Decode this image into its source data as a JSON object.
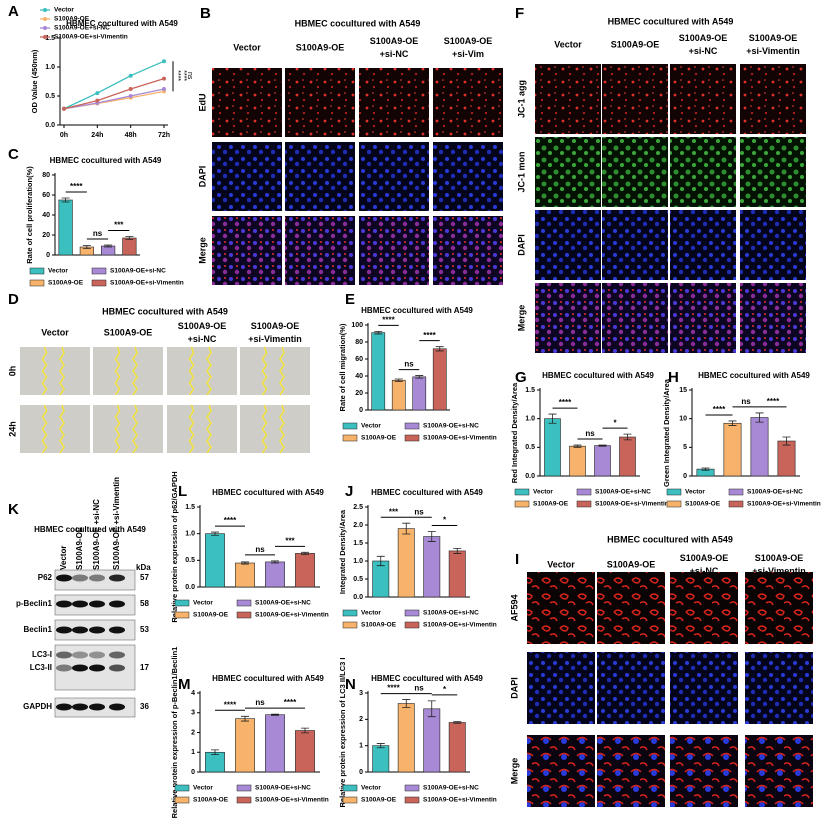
{
  "chart_data": [
    {
      "type": "line",
      "title": "HBMEC cocultured with A549",
      "ylabel": "OD Value (450nm)",
      "categories": [
        "0h",
        "24h",
        "48h",
        "72h"
      ],
      "series": [
        {
          "name": "Vector",
          "color": "#3bbfbf",
          "values": [
            0.28,
            0.55,
            0.85,
            1.1
          ]
        },
        {
          "name": "S100A9-OE",
          "color": "#f7b26b",
          "values": [
            0.28,
            0.37,
            0.47,
            0.58
          ]
        },
        {
          "name": "S100A9-OE+si-NC",
          "color": "#a889d6",
          "values": [
            0.28,
            0.38,
            0.5,
            0.62
          ]
        },
        {
          "name": "S100A9-OE+si-Vimentin",
          "color": "#c8645a",
          "values": [
            0.28,
            0.42,
            0.62,
            0.8
          ]
        }
      ],
      "ylim": [
        0,
        1.5
      ],
      "yticks": [
        {
          "value": 0,
          "label": "0.0"
        },
        0.5,
        {
          "value": 1,
          "label": "1.0"
        },
        1.5
      ],
      "annotations": [
        "****",
        "****",
        "ns"
      ]
    },
    {
      "type": "bar",
      "title": "HBMEC cocultured with A549",
      "ylabel": "Rate of cell proliferation(%)",
      "series": [
        {
          "name": "Vector",
          "color": "#3bbfbf",
          "values": [
            55
          ],
          "errors": [
            2
          ]
        },
        {
          "name": "S100A9-OE",
          "color": "#f7b26b",
          "values": [
            8
          ],
          "errors": [
            1.5
          ]
        },
        {
          "name": "S100A9-OE+si-NC",
          "color": "#a889d6",
          "values": [
            9
          ],
          "errors": [
            1
          ]
        },
        {
          "name": "S100A9-OE+si-Vimentin",
          "color": "#c8645a",
          "values": [
            17
          ],
          "errors": [
            1.5
          ]
        }
      ],
      "ylim": [
        0,
        80
      ],
      "yticks": [
        0,
        20,
        40,
        60,
        80
      ],
      "annotations": [
        "****",
        "ns",
        "***"
      ]
    },
    {
      "type": "bar",
      "title": "HBMEC cocultured with A549",
      "ylabel": "Rate of cell migration(%)",
      "series": [
        {
          "name": "Vector",
          "color": "#3bbfbf",
          "values": [
            91
          ],
          "errors": [
            1.5
          ]
        },
        {
          "name": "S100A9-OE",
          "color": "#f7b26b",
          "values": [
            35
          ],
          "errors": [
            1.5
          ]
        },
        {
          "name": "S100A9-OE+si-NC",
          "color": "#a889d6",
          "values": [
            39
          ],
          "errors": [
            1.5
          ]
        },
        {
          "name": "S100A9-OE+si-Vimentin",
          "color": "#c8645a",
          "values": [
            72
          ],
          "errors": [
            2.5
          ]
        }
      ],
      "ylim": [
        0,
        100
      ],
      "yticks": [
        0,
        20,
        40,
        60,
        80,
        100
      ],
      "annotations": [
        "****",
        "ns",
        "****"
      ]
    },
    {
      "type": "bar",
      "title": "HBMEC cocultured with A549",
      "ylabel": "Red Integrated Density/Area",
      "series": [
        {
          "name": "Vector",
          "color": "#3bbfbf",
          "values": [
            1.0
          ],
          "errors": [
            0.08
          ]
        },
        {
          "name": "S100A9-OE",
          "color": "#f7b26b",
          "values": [
            0.52
          ],
          "errors": [
            0.02
          ]
        },
        {
          "name": "S100A9-OE+si-NC",
          "color": "#a889d6",
          "values": [
            0.53
          ],
          "errors": [
            0.01
          ]
        },
        {
          "name": "S100A9-OE+si-Vimentin",
          "color": "#c8645a",
          "values": [
            0.68
          ],
          "errors": [
            0.05
          ]
        }
      ],
      "ylim": [
        0,
        1.5
      ],
      "yticks": [
        {
          "value": 0,
          "label": "0.0"
        },
        0.5,
        {
          "value": 1,
          "label": "1.0"
        },
        1.5
      ],
      "annotations": [
        "****",
        "ns",
        "*"
      ]
    },
    {
      "type": "bar",
      "title": "HBMEC cocultured with A549",
      "ylabel": "Green Integrated Density/Area",
      "series": [
        {
          "name": "Vector",
          "color": "#3bbfbf",
          "values": [
            1.2
          ],
          "errors": [
            0.2
          ]
        },
        {
          "name": "S100A9-OE",
          "color": "#f7b26b",
          "values": [
            9.2
          ],
          "errors": [
            0.4
          ]
        },
        {
          "name": "S100A9-OE+si-NC",
          "color": "#a889d6",
          "values": [
            10.2
          ],
          "errors": [
            0.8
          ]
        },
        {
          "name": "S100A9-OE+si-Vimentin",
          "color": "#c8645a",
          "values": [
            6.1
          ],
          "errors": [
            0.7
          ]
        }
      ],
      "ylim": [
        0,
        15
      ],
      "yticks": [
        0,
        5,
        10,
        15
      ],
      "annotations": [
        "****",
        "ns",
        "****"
      ]
    },
    {
      "type": "bar",
      "title": "HBMEC cocultured with A549",
      "ylabel": "Relative protein expression of p62/GAPDH",
      "series": [
        {
          "name": "Vector",
          "color": "#3bbfbf",
          "values": [
            1.0
          ],
          "errors": [
            0.03
          ]
        },
        {
          "name": "S100A9-OE",
          "color": "#f7b26b",
          "values": [
            0.45
          ],
          "errors": [
            0.02
          ]
        },
        {
          "name": "S100A9-OE+si-NC",
          "color": "#a889d6",
          "values": [
            0.47
          ],
          "errors": [
            0.02
          ]
        },
        {
          "name": "S100A9-OE+si-Vimentin",
          "color": "#c8645a",
          "values": [
            0.63
          ],
          "errors": [
            0.02
          ]
        }
      ],
      "ylim": [
        0,
        1.5
      ],
      "yticks": [
        {
          "value": 0,
          "label": "0.0"
        },
        0.5,
        {
          "value": 1,
          "label": "1.0"
        },
        1.5
      ],
      "annotations": [
        "****",
        "ns",
        "***"
      ]
    },
    {
      "type": "bar",
      "title": "HBMEC cocultured with A549",
      "ylabel": "Integrated Density/Area",
      "series": [
        {
          "name": "Vector",
          "color": "#3bbfbf",
          "values": [
            1.0
          ],
          "errors": [
            0.13
          ]
        },
        {
          "name": "S100A9-OE",
          "color": "#f7b26b",
          "values": [
            1.9
          ],
          "errors": [
            0.15
          ]
        },
        {
          "name": "S100A9-OE+si-NC",
          "color": "#a889d6",
          "values": [
            1.68
          ],
          "errors": [
            0.14
          ]
        },
        {
          "name": "S100A9-OE+si-Vimentin",
          "color": "#c8645a",
          "values": [
            1.28
          ],
          "errors": [
            0.07
          ]
        }
      ],
      "ylim": [
        0,
        2.5
      ],
      "yticks": [
        {
          "value": 0,
          "label": "0.0"
        },
        0.5,
        {
          "value": 1,
          "label": "1.0"
        },
        1.5,
        {
          "value": 2,
          "label": "2.0"
        },
        2.5
      ],
      "annotations": [
        "***",
        "ns",
        "*"
      ]
    },
    {
      "type": "bar",
      "title": "HBMEC cocultured with A549",
      "ylabel": "Relative protein expression of p-Beclin1/Beclin1",
      "series": [
        {
          "name": "Vector",
          "color": "#3bbfbf",
          "values": [
            1.0
          ],
          "errors": [
            0.12
          ]
        },
        {
          "name": "S100A9-OE",
          "color": "#f7b26b",
          "values": [
            2.7
          ],
          "errors": [
            0.12
          ]
        },
        {
          "name": "S100A9-OE+si-NC",
          "color": "#a889d6",
          "values": [
            2.9
          ],
          "errors": [
            0.03
          ]
        },
        {
          "name": "S100A9-OE+si-Vimentin",
          "color": "#c8645a",
          "values": [
            2.1
          ],
          "errors": [
            0.12
          ]
        }
      ],
      "ylim": [
        0,
        4
      ],
      "yticks": [
        0,
        1,
        2,
        3,
        4
      ],
      "annotations": [
        "****",
        "ns",
        "****"
      ]
    },
    {
      "type": "bar",
      "title": "HBMEC cocultured with A549",
      "ylabel": "Relative protein expression of LC3 II/LC3 I",
      "series": [
        {
          "name": "Vector",
          "color": "#3bbfbf",
          "values": [
            1.0
          ],
          "errors": [
            0.08
          ]
        },
        {
          "name": "S100A9-OE",
          "color": "#f7b26b",
          "values": [
            2.6
          ],
          "errors": [
            0.15
          ]
        },
        {
          "name": "S100A9-OE+si-NC",
          "color": "#a889d6",
          "values": [
            2.4
          ],
          "errors": [
            0.3
          ]
        },
        {
          "name": "S100A9-OE+si-Vimentin",
          "color": "#c8645a",
          "values": [
            1.88
          ],
          "errors": [
            0.03
          ]
        }
      ],
      "ylim": [
        0,
        3
      ],
      "yticks": [
        0,
        1,
        2,
        3
      ],
      "annotations": [
        "****",
        "ns",
        "*"
      ]
    }
  ],
  "figure": {
    "panel_labels": [
      "A",
      "B",
      "C",
      "D",
      "E",
      "F",
      "G",
      "H",
      "I",
      "J",
      "K",
      "L",
      "M",
      "N"
    ],
    "B": {
      "title": "HBMEC cocultured with A549",
      "columns": [
        [
          "Vector"
        ],
        [
          "S100A9-OE"
        ],
        [
          "S100A9-OE",
          "+si-NC"
        ],
        [
          "S100A9-OE",
          "+si-Vim"
        ]
      ],
      "rows": [
        "EdU",
        "DAPI",
        "Merge"
      ]
    },
    "D": {
      "title": "HBMEC cocultured with A549",
      "columns": [
        [
          "Vector"
        ],
        [
          "S100A9-OE"
        ],
        [
          "S100A9-OE",
          "+si-NC"
        ],
        [
          "S100A9-OE",
          "+si-Vimentin"
        ]
      ],
      "rows": [
        "0h",
        "24h"
      ]
    },
    "F": {
      "title": "HBMEC cocultured with A549",
      "columns": [
        [
          "Vector"
        ],
        [
          "S100A9-OE"
        ],
        [
          "S100A9-OE",
          "+si-NC"
        ],
        [
          "S100A9-OE",
          "+si-Vimentin"
        ]
      ],
      "rows": [
        "JC-1 agg",
        "JC-1 mon",
        "DAPI",
        "Merge"
      ]
    },
    "I": {
      "title": "HBMEC cocultured with A549",
      "columns": [
        [
          "Vector"
        ],
        [
          "S100A9-OE"
        ],
        [
          "S100A9-OE",
          "+si-NC"
        ],
        [
          "S100A9-OE",
          "+si-Vimentin"
        ]
      ],
      "rows": [
        "AF594",
        "DAPI",
        "Merge"
      ]
    },
    "K": {
      "title": "HBMEC cocultured with A549",
      "columns": [
        "Vector",
        "S100A9-OE",
        "S100A9-OE +si-NC",
        "S100A9-OE +si-Vimentin"
      ],
      "unit": "kDa",
      "rows": [
        {
          "label": "P62",
          "kda": "57"
        },
        {
          "label": "p-Beclin1",
          "kda": "58"
        },
        {
          "label": "Beclin1",
          "kda": "53"
        },
        {
          "label": "LC3-I"
        },
        {
          "label": "LC3-II",
          "kda": "17"
        },
        {
          "label": "GAPDH",
          "kda": "36"
        }
      ]
    }
  }
}
